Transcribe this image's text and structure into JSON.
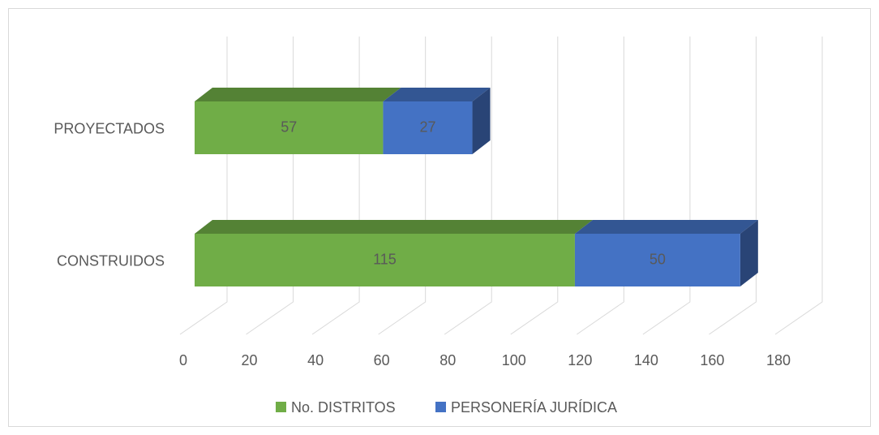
{
  "chart_data": {
    "type": "bar3d_stacked_horizontal",
    "categories": [
      "PROYECTADOS",
      "CONSTRUIDOS"
    ],
    "series": [
      {
        "name": "No. DISTRITOS",
        "color": "#70ad47",
        "values": [
          57,
          115
        ]
      },
      {
        "name": "PERSONERÍA JURÍDICA",
        "color": "#4472c4",
        "values": [
          27,
          50
        ]
      }
    ],
    "xlim": [
      0,
      180
    ],
    "xticks": [
      0,
      20,
      40,
      60,
      80,
      100,
      120,
      140,
      160,
      180
    ],
    "grid": true,
    "legend": "bottom"
  }
}
